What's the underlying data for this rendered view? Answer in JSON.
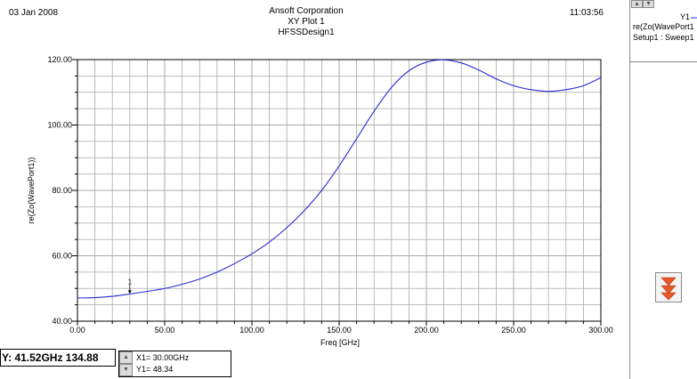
{
  "header": {
    "date": "03 Jan 2008",
    "company": "Ansoft Corporation",
    "plot_title": "XY Plot 1",
    "design_name": "HFSSDesign1",
    "time": "11:03:56"
  },
  "legend": {
    "label": "Y1",
    "trace_name": "re(Zo(WavePort1",
    "setup": "Setup1 : Sweep1",
    "up_arrow": "▲",
    "down_arrow": "▼",
    "collapse_icon": "double-chevron-down-icon"
  },
  "readout": {
    "value": "Y: 41.52GHz 134.88"
  },
  "marker": {
    "number": "1",
    "x_text": "X1= 30.00GHz",
    "y_text": "Y1= 48.34",
    "up": "▲",
    "down": "▼"
  },
  "colors": {
    "trace": "#2b2bd6",
    "grid": "#a9a9a9",
    "axes": "#000000"
  },
  "chart_data": {
    "type": "line",
    "xlabel": "Freq [GHz]",
    "ylabel": "re(Zo(WavePort1))",
    "xlim": [
      0,
      300
    ],
    "ylim": [
      40,
      120
    ],
    "x_ticks": [
      "0.00",
      "50.00",
      "100.00",
      "150.00",
      "200.00",
      "250.00",
      "300.00"
    ],
    "y_ticks": [
      "40.00",
      "60.00",
      "80.00",
      "100.00",
      "120.00"
    ],
    "grid": true,
    "series": [
      {
        "name": "re(Zo(WavePort1))",
        "x": [
          0,
          10,
          20,
          30,
          40,
          50,
          60,
          70,
          80,
          90,
          100,
          110,
          120,
          130,
          140,
          150,
          160,
          170,
          180,
          190,
          200,
          210,
          220,
          230,
          240,
          250,
          260,
          270,
          280,
          290,
          300
        ],
        "y": [
          47.1,
          47.2,
          47.6,
          48.3,
          49.1,
          50.0,
          51.3,
          52.9,
          55.0,
          57.6,
          60.6,
          64.2,
          68.6,
          73.8,
          80.0,
          87.5,
          95.8,
          104.2,
          111.5,
          116.6,
          119.2,
          119.9,
          119.0,
          116.8,
          114.1,
          112.0,
          110.8,
          110.3,
          110.8,
          112.0,
          114.5
        ]
      }
    ],
    "markers": [
      {
        "label": "1",
        "x": 30.0,
        "y": 48.34
      }
    ]
  }
}
